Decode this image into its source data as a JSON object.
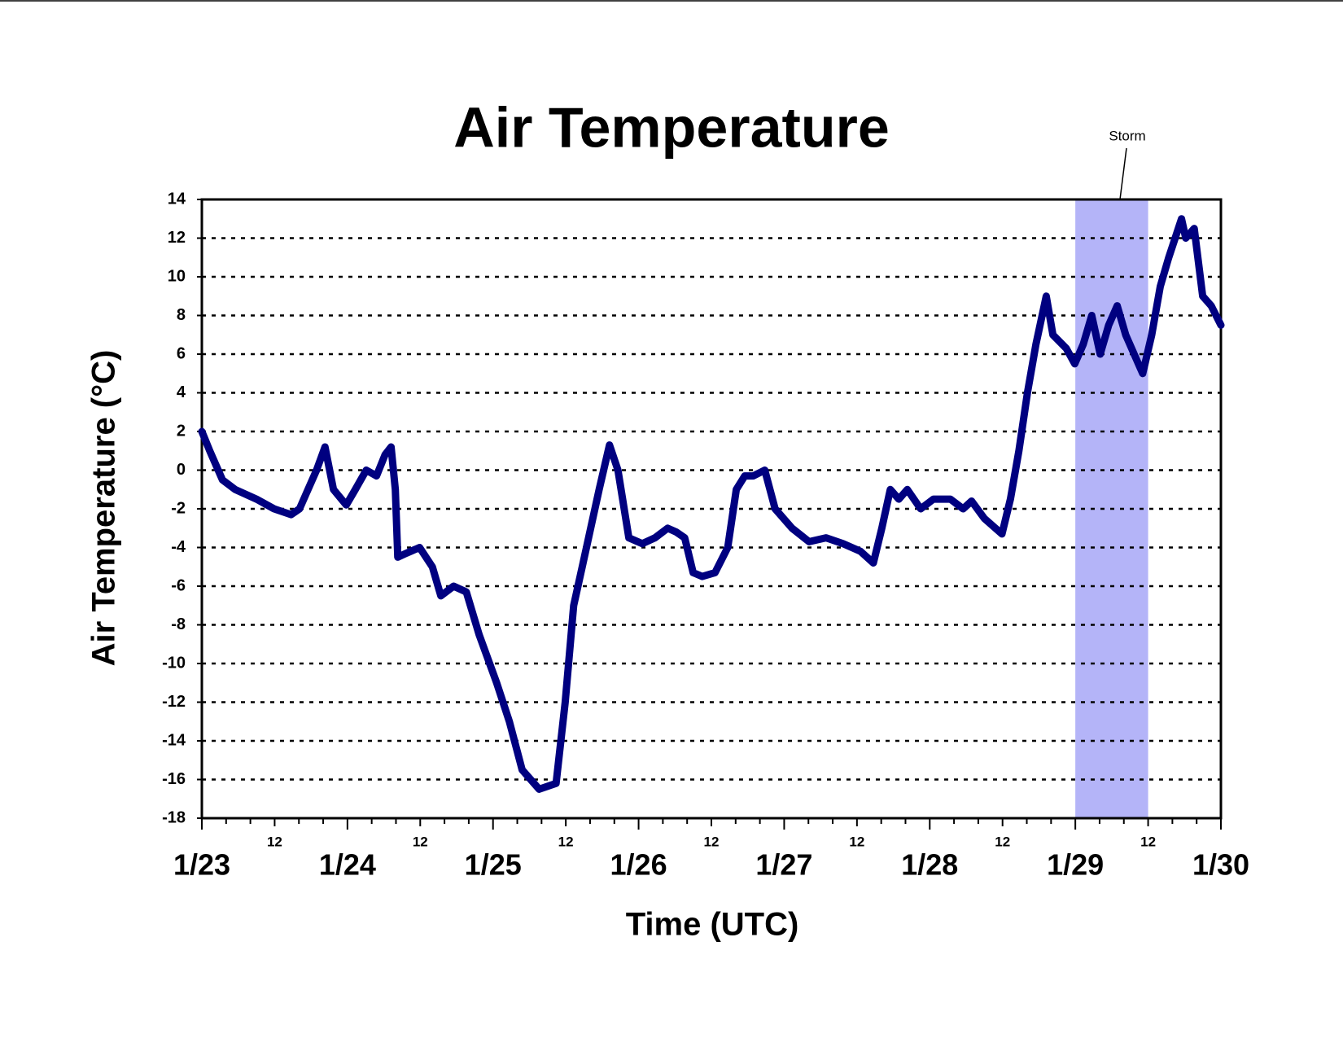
{
  "chart_data": {
    "type": "line",
    "title": "Air Temperature",
    "x_label": "Time (UTC)",
    "y_label": "Air Temperature (°C)",
    "annotation": "Storm",
    "shaded_span": [
      144,
      156
    ],
    "shade_color": "#b4b4f8",
    "series": [
      {
        "name": "Air Temperature",
        "color": "#000080",
        "x": [
          0,
          1.3,
          3.4,
          5.5,
          9,
          11.9,
          14.7,
          16.1,
          17.5,
          18.9,
          20.3,
          21.7,
          23.8,
          25.3,
          27.1,
          28.8,
          30.2,
          31.2,
          31.9,
          32.3,
          33.7,
          35.9,
          38,
          39.4,
          41.5,
          43.6,
          45.7,
          48.6,
          50.7,
          52.8,
          55.6,
          58.4,
          59.9,
          61.3,
          62.7,
          64.1,
          65.5,
          67.2,
          68.6,
          70.4,
          72.6,
          74.7,
          76.8,
          78.2,
          79.6,
          81,
          82.5,
          84.6,
          86.7,
          88.1,
          89.5,
          90.9,
          92.8,
          94.5,
          97.3,
          100.1,
          102.9,
          105.7,
          108.6,
          110.7,
          112.1,
          113.5,
          114.9,
          116.3,
          118.5,
          120.6,
          123.4,
          125.5,
          126.9,
          129,
          131.9,
          133.3,
          134.7,
          136.1,
          137.5,
          139.2,
          140.3,
          142.5,
          143.9,
          145.3,
          146.7,
          148.1,
          149.5,
          150.9,
          152.3,
          153.7,
          155.1,
          156.6,
          158,
          159.4,
          161.5,
          162.2,
          163.6,
          165,
          166.4,
          168
        ],
        "values": [
          2,
          1,
          -0.5,
          -1,
          -1.5,
          -2,
          -2.3,
          -2,
          -1,
          0,
          1.2,
          -1,
          -1.8,
          -1,
          0,
          -0.3,
          0.8,
          1.2,
          -1,
          -4.5,
          -4.3,
          -4,
          -5,
          -6.5,
          -6,
          -6.3,
          -8.5,
          -11,
          -13,
          -15.5,
          -16.5,
          -16.2,
          -12,
          -7,
          -5,
          -3,
          -1,
          1.3,
          0,
          -3.5,
          -3.8,
          -3.5,
          -3,
          -3.2,
          -3.5,
          -5.3,
          -5.5,
          -5.3,
          -4,
          -1,
          -0.3,
          -0.3,
          0,
          -2,
          -3,
          -3.7,
          -3.5,
          -3.8,
          -4.2,
          -4.8,
          -3,
          -1,
          -1.5,
          -1,
          -2,
          -1.5,
          -1.5,
          -2,
          -1.6,
          -2.5,
          -3.3,
          -1.5,
          1,
          4,
          6.5,
          9,
          7,
          6.3,
          5.5,
          6.5,
          8,
          6,
          7.5,
          8.5,
          7,
          6,
          5,
          7,
          9.5,
          11,
          13,
          12,
          12.5,
          9,
          8.5,
          7.5
        ]
      }
    ],
    "xlim": [
      0,
      168
    ],
    "xticks": [
      {
        "value": 0,
        "label": "1/23"
      },
      {
        "value": 12,
        "label": "12"
      },
      {
        "value": 24,
        "label": "1/24"
      },
      {
        "value": 36,
        "label": "12"
      },
      {
        "value": 48,
        "label": "1/25"
      },
      {
        "value": 60,
        "label": "12"
      },
      {
        "value": 72,
        "label": "1/26"
      },
      {
        "value": 84,
        "label": "12"
      },
      {
        "value": 96,
        "label": "1/27"
      },
      {
        "value": 108,
        "label": "12"
      },
      {
        "value": 120,
        "label": "1/28"
      },
      {
        "value": 132,
        "label": "12"
      },
      {
        "value": 144,
        "label": "1/29"
      },
      {
        "value": 156,
        "label": "12"
      },
      {
        "value": 168,
        "label": "1/30"
      }
    ],
    "xminor_ticks": [
      4,
      8,
      16,
      20,
      28,
      32,
      40,
      44,
      52,
      56,
      64,
      68,
      76,
      80,
      88,
      92,
      100,
      104,
      112,
      116,
      124,
      128,
      136,
      140,
      148,
      152,
      160,
      164
    ],
    "ylim": [
      -18,
      14
    ],
    "yticks": [
      -18,
      -16,
      -14,
      -12,
      -10,
      -8,
      -6,
      -4,
      -2,
      0,
      2,
      4,
      6,
      8,
      10,
      12,
      14
    ],
    "grid": true
  }
}
